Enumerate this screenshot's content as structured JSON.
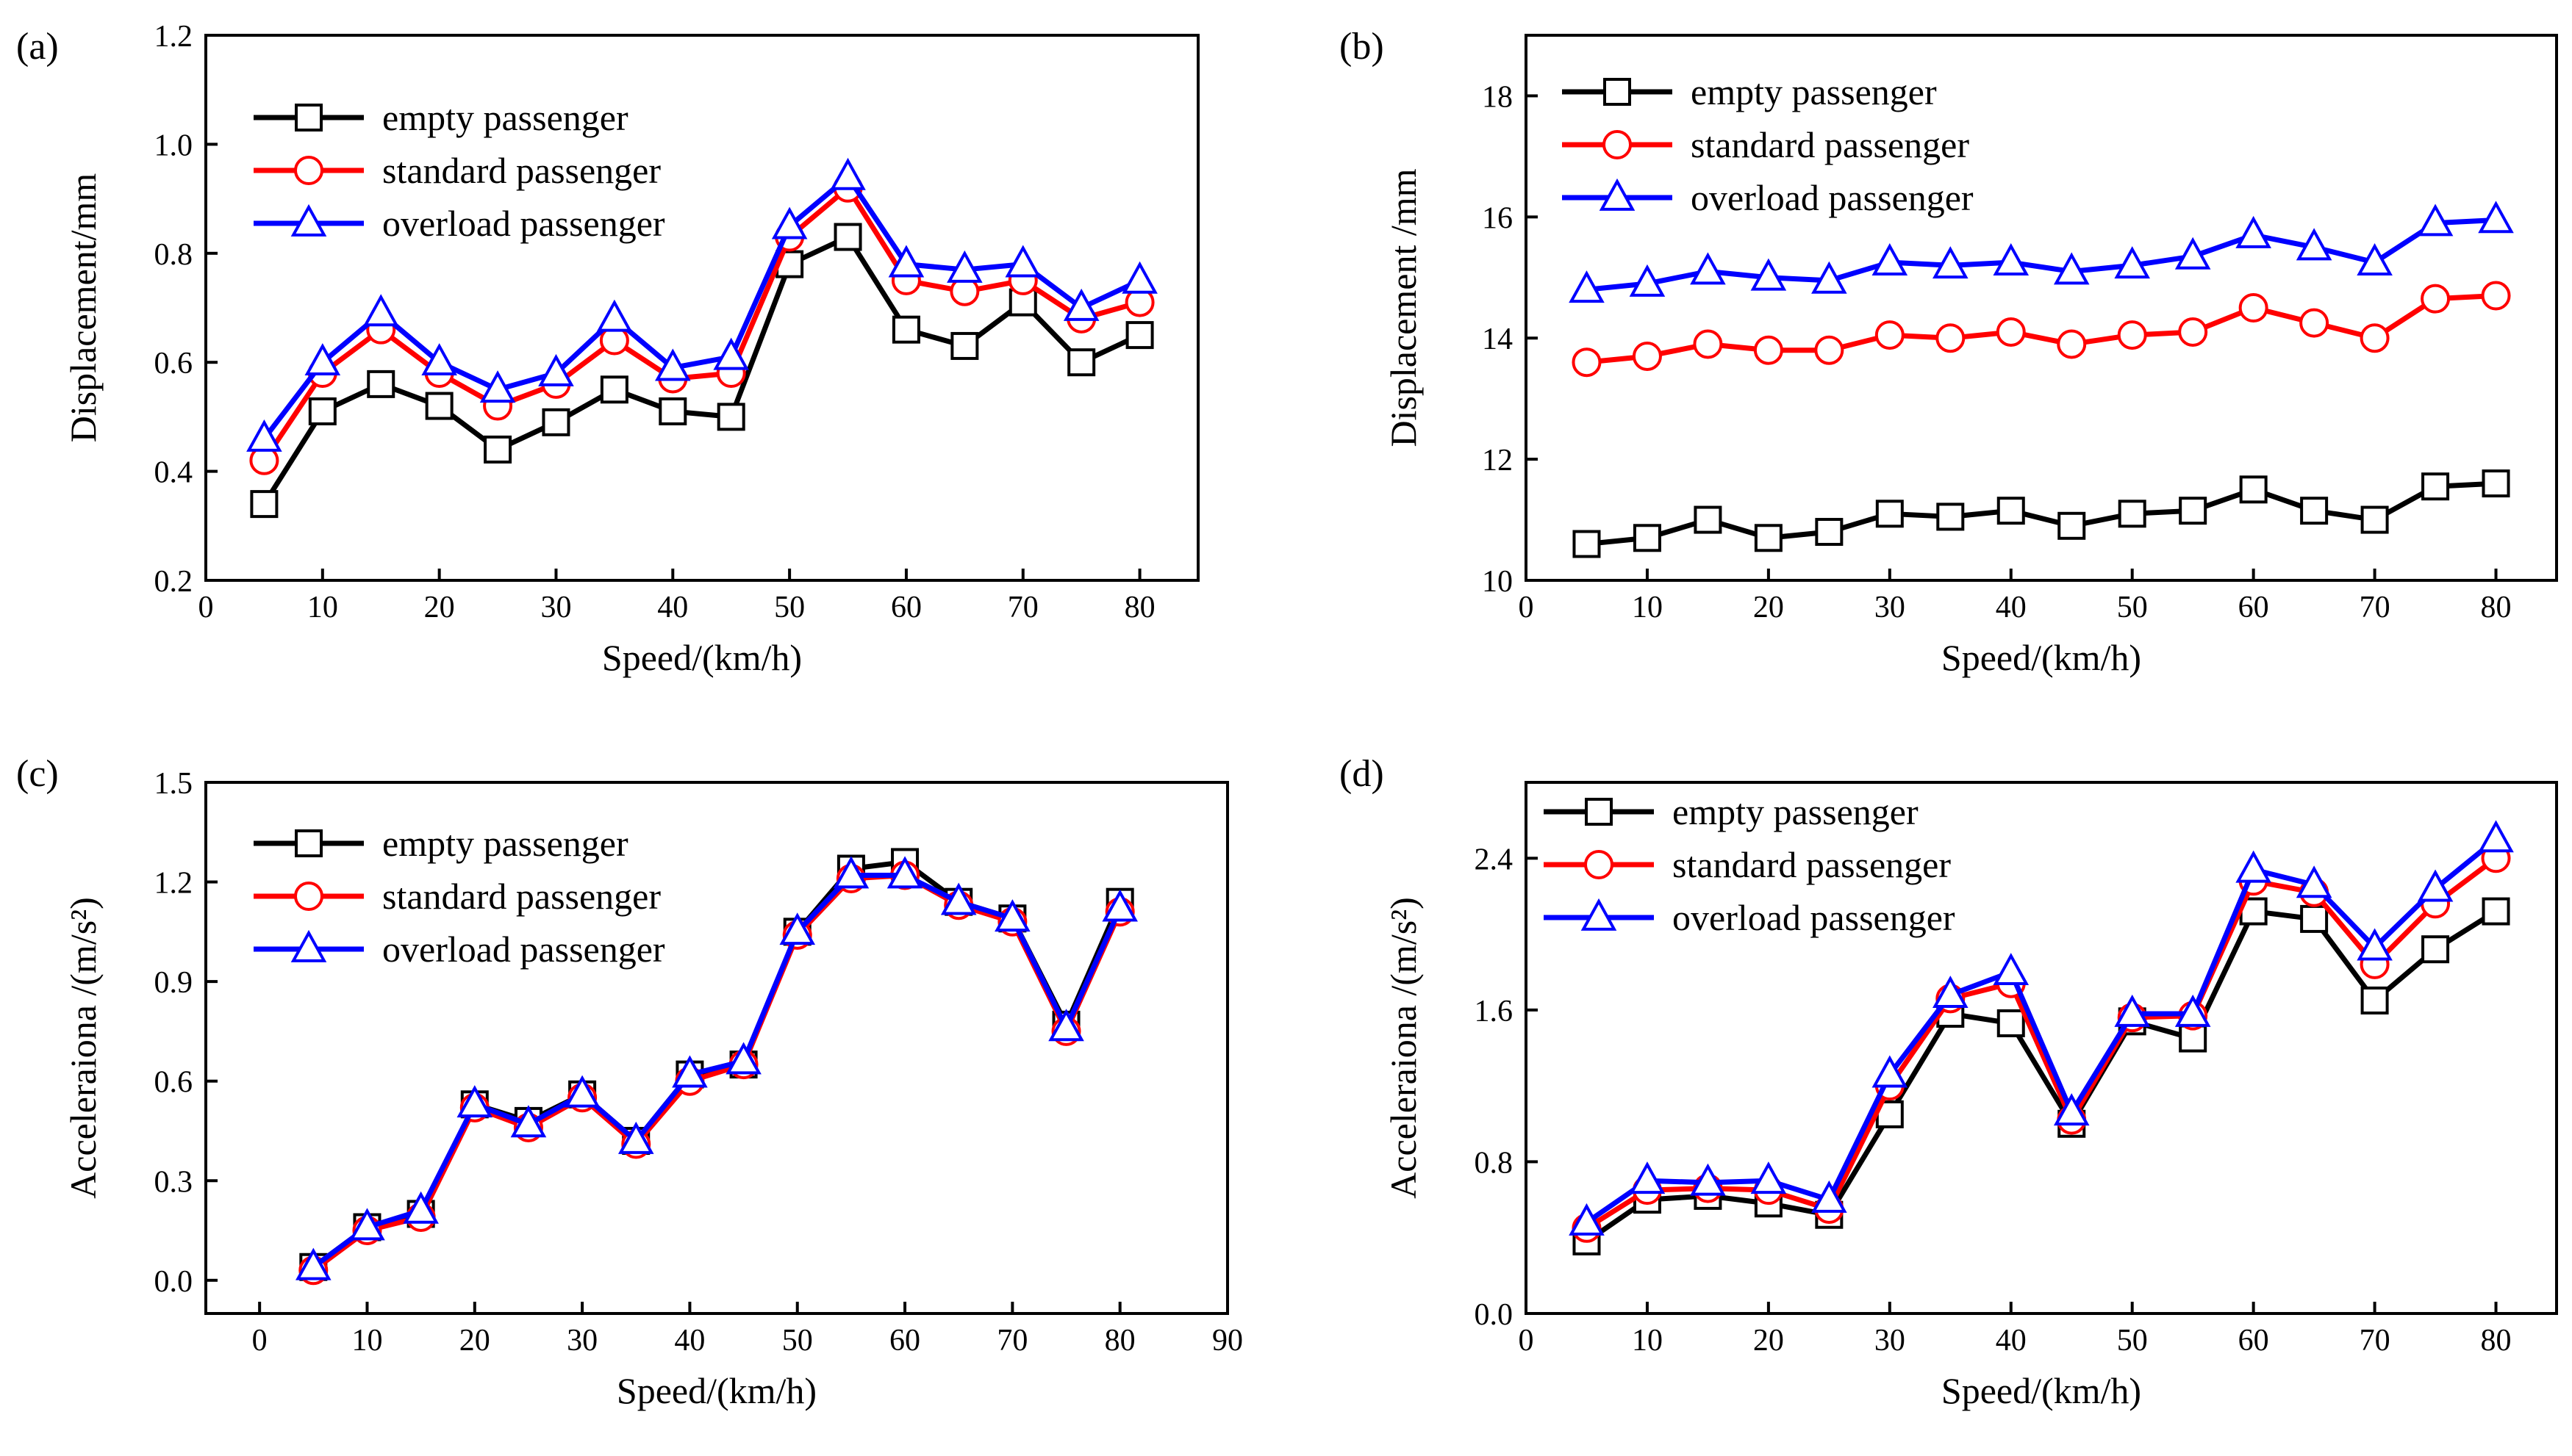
{
  "figure": {
    "background": "#ffffff",
    "series_styles": {
      "empty passenger": {
        "color": "#000000",
        "marker": "square"
      },
      "standard passenger": {
        "color": "#ff0000",
        "marker": "circle"
      },
      "overload passenger": {
        "color": "#0000ff",
        "marker": "triangle"
      }
    }
  },
  "chart_data": [
    {
      "panel": "(a)",
      "type": "line",
      "xlabel": "Speed/(km/h)",
      "ylabel": "Displacement/mm",
      "xlim": [
        0,
        85
      ],
      "ylim": [
        0.2,
        1.2
      ],
      "xticks": [
        0,
        10,
        20,
        30,
        40,
        50,
        60,
        70,
        80
      ],
      "yticks": [
        0.2,
        0.4,
        0.6,
        0.8,
        1.0,
        1.2
      ],
      "ytick_labels": [
        "0.2",
        "0.4",
        "0.6",
        "0.8",
        "1.0",
        "1.2"
      ],
      "legend_position": "top-left",
      "x": [
        5,
        10,
        15,
        20,
        25,
        30,
        35,
        40,
        45,
        50,
        55,
        60,
        65,
        70,
        75,
        80
      ],
      "series": [
        {
          "name": "empty passenger",
          "values": [
            0.34,
            0.51,
            0.56,
            0.52,
            0.44,
            0.49,
            0.55,
            0.51,
            0.5,
            0.78,
            0.83,
            0.66,
            0.63,
            0.71,
            0.6,
            0.65
          ]
        },
        {
          "name": "standard passenger",
          "values": [
            0.42,
            0.58,
            0.66,
            0.58,
            0.52,
            0.56,
            0.64,
            0.57,
            0.58,
            0.83,
            0.92,
            0.75,
            0.73,
            0.75,
            0.68,
            0.71
          ]
        },
        {
          "name": "overload passenger",
          "values": [
            0.46,
            0.6,
            0.69,
            0.6,
            0.55,
            0.58,
            0.68,
            0.59,
            0.61,
            0.85,
            0.94,
            0.78,
            0.77,
            0.78,
            0.7,
            0.75
          ]
        }
      ]
    },
    {
      "panel": "(b)",
      "type": "line",
      "xlabel": "Speed/(km/h)",
      "ylabel": "Displacement /mm",
      "xlim": [
        0,
        85
      ],
      "ylim": [
        10,
        19
      ],
      "xticks": [
        0,
        10,
        20,
        30,
        40,
        50,
        60,
        70,
        80
      ],
      "yticks": [
        10,
        12,
        14,
        16,
        18
      ],
      "ytick_labels": [
        "10",
        "12",
        "14",
        "16",
        "18"
      ],
      "legend_position": "top-left",
      "x": [
        5,
        10,
        15,
        20,
        25,
        30,
        35,
        40,
        45,
        50,
        55,
        60,
        65,
        70,
        75,
        80
      ],
      "series": [
        {
          "name": "empty passenger",
          "values": [
            10.6,
            10.7,
            11.0,
            10.7,
            10.8,
            11.1,
            11.05,
            11.15,
            10.9,
            11.1,
            11.15,
            11.5,
            11.15,
            11.0,
            11.55,
            11.6
          ]
        },
        {
          "name": "standard passenger",
          "values": [
            13.6,
            13.7,
            13.9,
            13.8,
            13.8,
            14.05,
            14.0,
            14.1,
            13.9,
            14.05,
            14.1,
            14.5,
            14.25,
            14.0,
            14.65,
            14.7
          ]
        },
        {
          "name": "overload passenger",
          "values": [
            14.8,
            14.9,
            15.1,
            15.0,
            14.95,
            15.25,
            15.2,
            15.25,
            15.1,
            15.2,
            15.35,
            15.7,
            15.5,
            15.25,
            15.9,
            15.95
          ]
        }
      ]
    },
    {
      "panel": "(c)",
      "type": "line",
      "xlabel": "Speed/(km/h)",
      "ylabel": "Acceleraiona /(m/s²)",
      "xlim": [
        -5,
        90
      ],
      "ylim": [
        -0.1,
        1.5
      ],
      "xticks": [
        0,
        10,
        20,
        30,
        40,
        50,
        60,
        70,
        80,
        90
      ],
      "yticks": [
        0.0,
        0.3,
        0.6,
        0.9,
        1.2,
        1.5
      ],
      "ytick_labels": [
        "0.0",
        "0.3",
        "0.6",
        "0.9",
        "1.2",
        "1.5"
      ],
      "legend_position": "top-left",
      "x": [
        5,
        10,
        15,
        20,
        25,
        30,
        35,
        40,
        45,
        50,
        55,
        60,
        65,
        70,
        75,
        80
      ],
      "series": [
        {
          "name": "empty passenger",
          "values": [
            0.04,
            0.16,
            0.2,
            0.53,
            0.48,
            0.56,
            0.42,
            0.62,
            0.65,
            1.05,
            1.24,
            1.26,
            1.14,
            1.09,
            0.77,
            1.14
          ]
        },
        {
          "name": "standard passenger",
          "values": [
            0.03,
            0.15,
            0.19,
            0.52,
            0.46,
            0.55,
            0.41,
            0.6,
            0.65,
            1.04,
            1.21,
            1.22,
            1.13,
            1.08,
            0.75,
            1.11
          ]
        },
        {
          "name": "overload passenger",
          "values": [
            0.04,
            0.16,
            0.21,
            0.53,
            0.47,
            0.56,
            0.42,
            0.62,
            0.66,
            1.05,
            1.22,
            1.22,
            1.14,
            1.09,
            0.76,
            1.12
          ]
        }
      ]
    },
    {
      "panel": "(d)",
      "type": "line",
      "xlabel": "Speed/(km/h)",
      "ylabel": "Acceleraiona /(m/s²)",
      "xlim": [
        0,
        85
      ],
      "ylim": [
        0.0,
        2.8
      ],
      "xticks": [
        0,
        10,
        20,
        30,
        40,
        50,
        60,
        70,
        80
      ],
      "yticks": [
        0.0,
        0.8,
        1.6,
        2.4
      ],
      "ytick_labels": [
        "0.0",
        "0.8",
        "1.6",
        "2.4"
      ],
      "legend_position": "top-left",
      "x": [
        5,
        10,
        15,
        20,
        25,
        30,
        35,
        40,
        45,
        50,
        55,
        60,
        65,
        70,
        75,
        80
      ],
      "series": [
        {
          "name": "empty passenger",
          "values": [
            0.38,
            0.6,
            0.62,
            0.58,
            0.52,
            1.05,
            1.58,
            1.53,
            1.0,
            1.54,
            1.45,
            2.12,
            2.08,
            1.65,
            1.92,
            2.12
          ]
        },
        {
          "name": "standard passenger",
          "values": [
            0.45,
            0.65,
            0.66,
            0.65,
            0.55,
            1.2,
            1.66,
            1.74,
            1.02,
            1.56,
            1.57,
            2.28,
            2.22,
            1.84,
            2.16,
            2.4
          ]
        },
        {
          "name": "overload passenger",
          "values": [
            0.48,
            0.7,
            0.69,
            0.7,
            0.6,
            1.26,
            1.68,
            1.8,
            1.06,
            1.58,
            1.58,
            2.34,
            2.26,
            1.93,
            2.24,
            2.5
          ]
        }
      ]
    }
  ]
}
